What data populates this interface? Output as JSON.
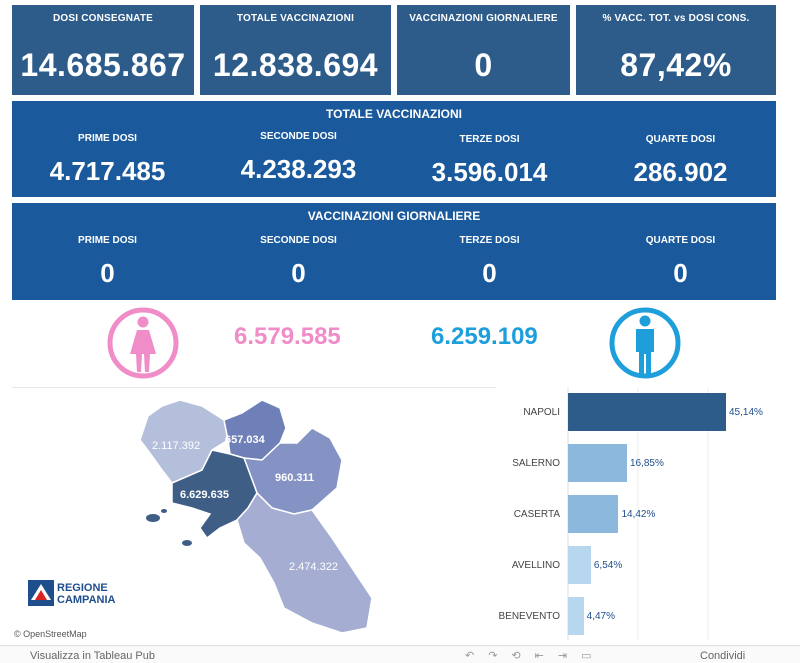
{
  "kpis": [
    {
      "label": "DOSI  CONSEGNATE",
      "value": "14.685.867"
    },
    {
      "label": "TOTALE VACCINAZIONI",
      "value": "12.838.694"
    },
    {
      "label": "VACCINAZIONI GIORNALIERE",
      "value": "0"
    },
    {
      "label": "% VACC. TOT. vs DOSI CONS.",
      "value": "87,42%"
    }
  ],
  "totale": {
    "title": "TOTALE VACCINAZIONI",
    "cols": [
      {
        "label": "PRIME DOSI",
        "value": "4.717.485"
      },
      {
        "label": "SECONDE DOSI",
        "value": "4.238.293"
      },
      {
        "label": "TERZE DOSI",
        "value": "3.596.014"
      },
      {
        "label": "QUARTE DOSI",
        "value": "286.902"
      }
    ]
  },
  "giornaliere": {
    "title": "VACCINAZIONI GIORNALIERE",
    "cols": [
      {
        "label": "PRIME DOSI",
        "value": "0"
      },
      {
        "label": "SECONDE DOSI",
        "value": "0"
      },
      {
        "label": "TERZE DOSI",
        "value": "0"
      },
      {
        "label": "QUARTE DOSI",
        "value": "0"
      }
    ]
  },
  "gender": {
    "female_value": "6.579.585",
    "male_value": "6.259.109",
    "female_color": "#f08cc8",
    "male_color": "#1e9fdc"
  },
  "map": {
    "regions": [
      {
        "name": "Caserta",
        "value": "2.117.392"
      },
      {
        "name": "Benevento",
        "value": "657.034"
      },
      {
        "name": "Avellino",
        "value": "960.311"
      },
      {
        "name": "Napoli",
        "value": "6.629.635"
      },
      {
        "name": "Salerno",
        "value": "2.474.322"
      }
    ],
    "logo_text": [
      "REGIONE",
      "CAMPANIA"
    ],
    "attribution": "© OpenStreetMap"
  },
  "chart_data": {
    "type": "bar",
    "orientation": "horizontal",
    "categories": [
      "NAPOLI",
      "SALERNO",
      "CASERTA",
      "AVELLINO",
      "BENEVENTO"
    ],
    "values": [
      45.14,
      16.85,
      14.42,
      6.54,
      4.47
    ],
    "value_labels": [
      "45,14%",
      "16,85%",
      "14,42%",
      "6,54%",
      "4,47%"
    ],
    "colors": [
      "#2e5c8a",
      "#8cb8dd",
      "#8cb8dd",
      "#b7d7ee",
      "#b7d7ee"
    ],
    "xlim": [
      0,
      50
    ],
    "grid": true
  },
  "footer": {
    "left_label": "Visualizza in Tableau Pub",
    "right_label": "Condividi"
  }
}
